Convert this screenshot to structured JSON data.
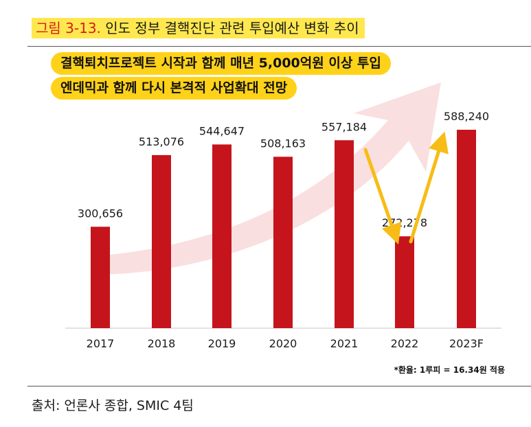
{
  "figure": {
    "number": "그림 3-13.",
    "title": "인도 정부 결핵진단 관련 투입예산 변화 추이"
  },
  "callouts": [
    "결핵퇴치프로젝트 시작과 함께 매년 5,000억원 이상 투입",
    "엔데믹과 함께 다시 본격적 사업확대 전망"
  ],
  "note": "*환율: 1루피 = 16.34원 적용",
  "source": "출처: 언론사 종합, SMIC 4팀",
  "chart_data": {
    "type": "bar",
    "categories": [
      "2017",
      "2018",
      "2019",
      "2020",
      "2021",
      "2022",
      "2023F"
    ],
    "values": [
      300656,
      513076,
      544647,
      508163,
      557184,
      272278,
      588240
    ],
    "value_labels": [
      "300,656",
      "513,076",
      "544,647",
      "508,163",
      "557,184",
      "272,278",
      "588,240"
    ],
    "bar_color": "#c5141b",
    "arrow_color": "#f7bd16",
    "trend_color": "#f6c4c6",
    "ylim": [
      0,
      588240
    ],
    "grid": false,
    "legend": "none"
  }
}
